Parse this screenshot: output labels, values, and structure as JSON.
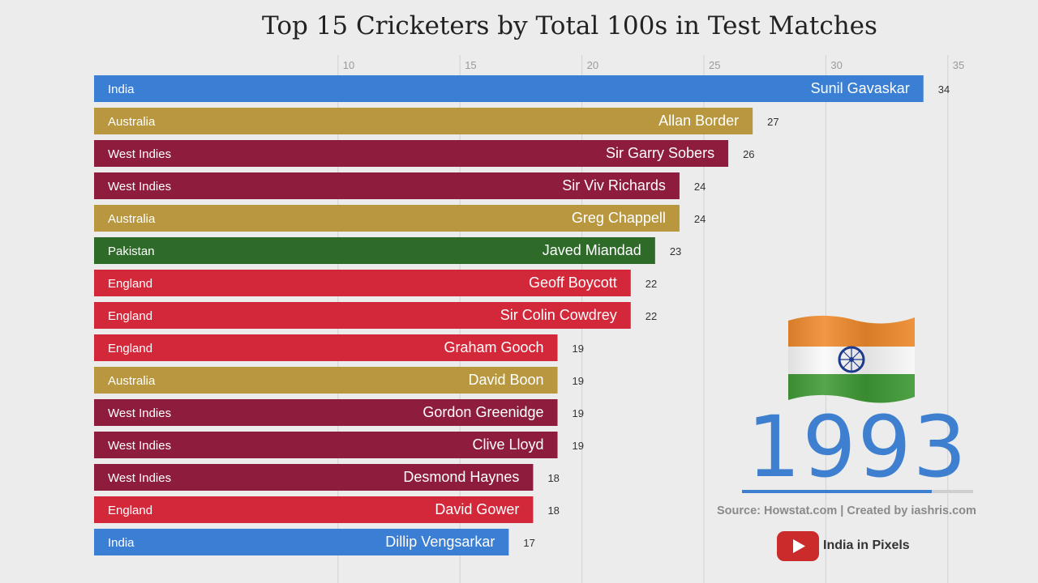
{
  "header": {
    "title": "Top 15 Cricketers by Total 100s in Test Matches"
  },
  "colors": {
    "India": "#3b7fd4",
    "Australia": "#b8973e",
    "West Indies": "#8e1c3d",
    "Pakistan": "#2e6b29",
    "England": "#d2283a",
    "accent": "#3e7fd0"
  },
  "year": "1993",
  "progress": 0.82,
  "source": "Source: Howstat.com | Created by iashris.com",
  "channel": "India in Pixels",
  "icons": {
    "flag": "india-flag-icon",
    "youtube": "youtube-icon"
  },
  "chart_data": {
    "type": "bar",
    "orientation": "horizontal",
    "title": "Top 15 Cricketers by Total 100s in Test Matches",
    "x_ticks": [
      10,
      15,
      20,
      25,
      30,
      35
    ],
    "xlim": [
      0,
      36
    ],
    "grid": true,
    "bars": [
      {
        "player": "Sunil Gavaskar",
        "country": "India",
        "value": 34
      },
      {
        "player": "Allan Border",
        "country": "Australia",
        "value": 27
      },
      {
        "player": "Sir Garry Sobers",
        "country": "West Indies",
        "value": 26
      },
      {
        "player": "Sir Viv Richards",
        "country": "West Indies",
        "value": 24
      },
      {
        "player": "Greg Chappell",
        "country": "Australia",
        "value": 24
      },
      {
        "player": "Javed Miandad",
        "country": "Pakistan",
        "value": 23
      },
      {
        "player": "Geoff Boycott",
        "country": "England",
        "value": 22
      },
      {
        "player": "Sir Colin Cowdrey",
        "country": "England",
        "value": 22
      },
      {
        "player": "Graham Gooch",
        "country": "England",
        "value": 19
      },
      {
        "player": "David Boon",
        "country": "Australia",
        "value": 19
      },
      {
        "player": "Gordon Greenidge",
        "country": "West Indies",
        "value": 19
      },
      {
        "player": "Clive Lloyd",
        "country": "West Indies",
        "value": 19
      },
      {
        "player": "Desmond Haynes",
        "country": "West Indies",
        "value": 18
      },
      {
        "player": "David Gower",
        "country": "England",
        "value": 18
      },
      {
        "player": "Dillip Vengsarkar",
        "country": "India",
        "value": 17
      }
    ]
  }
}
